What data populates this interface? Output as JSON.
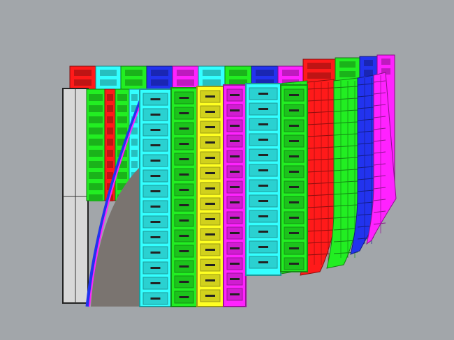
{
  "viewport": {
    "background": "#a2a6aa",
    "panel_colors": {
      "red": "#ff1a1a",
      "cyan": "#33ffff",
      "green": "#22ee22",
      "blue": "#2233ee",
      "magenta": "#ff22ff",
      "yellow": "#ffff22"
    },
    "back_row_colors": [
      "red",
      "cyan",
      "green",
      "blue",
      "magenta",
      "cyan",
      "green",
      "blue",
      "magenta",
      "red",
      "green",
      "blue",
      "magenta"
    ],
    "front_column_colors": [
      "cyan",
      "green",
      "yellow",
      "magenta",
      "cyan",
      "green",
      "red",
      "green",
      "blue",
      "magenta"
    ]
  }
}
